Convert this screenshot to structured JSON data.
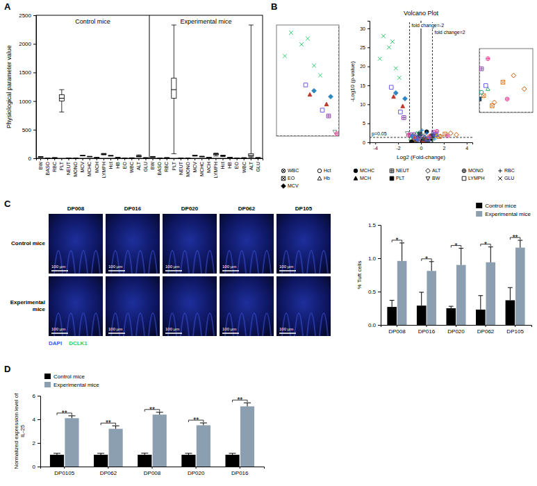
{
  "chart_data": [
    {
      "panel": "A",
      "type": "box",
      "ylabel": "Physiological parameter value",
      "ylim": [
        0,
        2500
      ],
      "yticks": [
        0,
        500,
        1000,
        1500,
        2000,
        2500
      ],
      "groups": [
        {
          "name": "Control mice",
          "categories": [
            "BW",
            "BASO",
            "RBC",
            "PLT",
            "NEUT",
            "MONO",
            "MCV",
            "MCHC",
            "MCH",
            "LYMPH",
            "Hct",
            "HB",
            "EO",
            "WBC",
            "ALT",
            "GLU"
          ],
          "min": [
            18,
            0,
            7,
            810,
            0.5,
            0.1,
            42,
            28,
            13,
            60,
            38,
            12,
            0,
            3,
            25,
            5
          ],
          "q1": [
            22,
            0,
            8.5,
            1000,
            1,
            0.2,
            45,
            30,
            14,
            68,
            42,
            13,
            0.1,
            5,
            32,
            7
          ],
          "median": [
            24,
            0.1,
            9,
            1050,
            1.5,
            0.3,
            47,
            31,
            15,
            72,
            45,
            14,
            0.2,
            6,
            38,
            8
          ],
          "q3": [
            26,
            0.1,
            9.5,
            1110,
            2,
            0.4,
            49,
            32,
            16,
            78,
            47,
            15,
            0.3,
            7,
            45,
            9
          ],
          "max": [
            30,
            0.3,
            10.5,
            1200,
            3,
            0.6,
            52,
            34,
            17,
            85,
            50,
            16,
            0.5,
            9,
            60,
            11
          ]
        },
        {
          "name": "Experimental mice",
          "categories": [
            "BW",
            "BASO",
            "RBC",
            "PLT",
            "NEUT",
            "MONO",
            "MCV",
            "MCHC",
            "MCH",
            "LYMPH",
            "Hct",
            "HB",
            "EO",
            "WBC",
            "ALT",
            "GLU"
          ],
          "min": [
            15,
            0,
            5,
            80,
            0.3,
            0.05,
            38,
            26,
            12,
            40,
            30,
            9,
            0,
            2,
            15,
            3
          ],
          "q1": [
            21,
            0,
            8,
            1050,
            1,
            0.2,
            44,
            29,
            14,
            62,
            40,
            12.5,
            0.1,
            4.5,
            35,
            6.5
          ],
          "median": [
            24,
            0.1,
            9,
            1200,
            1.8,
            0.3,
            47,
            31,
            15,
            70,
            44,
            14,
            0.2,
            6,
            50,
            8
          ],
          "q3": [
            27,
            0.2,
            9.8,
            1400,
            2.6,
            0.5,
            50,
            33,
            16,
            78,
            48,
            15,
            0.4,
            7.5,
            80,
            9.5
          ],
          "max": [
            32,
            0.5,
            11,
            2330,
            5,
            1,
            55,
            36,
            18,
            92,
            55,
            17,
            0.8,
            12,
            2330,
            14
          ]
        }
      ]
    },
    {
      "panel": "B",
      "type": "scatter",
      "title": "Volcano Plot",
      "xlabel": "Log2 (Fold-change)",
      "ylabel": "-Log10 (p-value)",
      "xlim": [
        -4.5,
        4.5
      ],
      "xticks": [
        -4,
        -2,
        0,
        2,
        4
      ],
      "ylim": [
        0,
        32
      ],
      "yticks": [
        0,
        5,
        10,
        15,
        20,
        25,
        30
      ],
      "center_x": 0,
      "thresholds": [
        {
          "axis": "x",
          "value": -1,
          "label": "fold change=-2"
        },
        {
          "axis": "x",
          "value": 1,
          "label": "fold change=2"
        },
        {
          "axis": "y",
          "value": 1.3,
          "label": "p=0.05"
        }
      ],
      "insets": [
        {
          "xlim": [
            -4,
            -1
          ],
          "ylim": [
            1.3,
            30
          ]
        },
        {
          "xlim": [
            1,
            3.5
          ],
          "ylim": [
            1.3,
            3.2
          ]
        }
      ],
      "legend": "bottom",
      "series": [
        {
          "name": "WBC",
          "color": "#7b3fa0",
          "marker": "circle-x",
          "x": [
            -0.3,
            0.2,
            0.5,
            -0.6,
            0.1
          ],
          "values": [
            0.8,
            1.5,
            0.4,
            2.1,
            0.2
          ]
        },
        {
          "name": "EO",
          "color": "#e67e22",
          "marker": "square-x",
          "x": [
            1.2,
            -0.5,
            2.1,
            0.8,
            1.6
          ],
          "values": [
            1.8,
            0.6,
            2.2,
            1.1,
            1.5
          ]
        },
        {
          "name": "MCV",
          "color": "#2e86c1",
          "marker": "diamond",
          "x": [
            -1.4,
            -0.2,
            0.3,
            -2.2,
            0.6
          ],
          "values": [
            11.5,
            0.9,
            1.2,
            13,
            0.5
          ]
        },
        {
          "name": "Hct",
          "color": "#16a085",
          "marker": "circle-open",
          "x": [
            -0.7,
            0.4,
            -0.1,
            0.9,
            1.1
          ],
          "values": [
            1.6,
            0.7,
            2.5,
            0.3,
            1.9
          ]
        },
        {
          "name": "Hb",
          "color": "#27ae60",
          "marker": "triangle-open",
          "x": [
            -0.4,
            0.7,
            0.2,
            -0.9,
            1.4
          ],
          "values": [
            2.3,
            1.3,
            0.6,
            1.0,
            2.0
          ]
        },
        {
          "name": "MCHC",
          "color": "#111111",
          "marker": "circle",
          "x": [
            0.1,
            -0.3,
            0.5,
            -0.8,
            0.9
          ],
          "values": [
            0.4,
            1.1,
            2.8,
            0.2,
            0.9
          ]
        },
        {
          "name": "MCH",
          "color": "#c0392b",
          "marker": "triangle",
          "x": [
            -1.6,
            -0.6,
            0.2,
            -2.4,
            0.8
          ],
          "values": [
            9.5,
            1.4,
            0.5,
            12,
            1.7
          ]
        },
        {
          "name": "NEUT",
          "color": "#8e44ad",
          "marker": "square-plus",
          "x": [
            -1.5,
            -0.2,
            1.1,
            0.4,
            -0.9
          ],
          "values": [
            6.5,
            1.0,
            2.6,
            0.8,
            2.0
          ]
        },
        {
          "name": "PLT",
          "color": "#34495e",
          "marker": "square",
          "x": [
            0.3,
            -0.4,
            1.0,
            -0.1,
            0.6
          ],
          "values": [
            0.9,
            0.4,
            1.7,
            2.2,
            0.3
          ]
        },
        {
          "name": "ALT",
          "color": "#d35400",
          "marker": "diamond-open",
          "x": [
            2.6,
            3.1,
            1.7,
            -0.5,
            0.4
          ],
          "values": [
            2.4,
            2.0,
            1.6,
            0.7,
            1.2
          ]
        },
        {
          "name": "BW",
          "color": "#7f8c8d",
          "marker": "triangle-down-open",
          "x": [
            -0.2,
            0.3,
            -0.6,
            0.9,
            -1.2
          ],
          "values": [
            0.5,
            1.8,
            1.2,
            0.6,
            2.4
          ]
        },
        {
          "name": "MONO",
          "color": "#e84393",
          "marker": "circle-plus",
          "x": [
            1.4,
            -0.3,
            0.7,
            -1.1,
            2.3
          ],
          "values": [
            2.9,
            0.8,
            1.5,
            1.9,
            1.7
          ]
        },
        {
          "name": "LYMPH",
          "color": "#6c5ce7",
          "marker": "square-open",
          "x": [
            -1.8,
            -0.5,
            0.6,
            1.3,
            -2.6
          ],
          "values": [
            8.0,
            1.3,
            0.9,
            2.1,
            14.5
          ]
        },
        {
          "name": "RBC",
          "color": "#0984e3",
          "marker": "plus",
          "x": [
            -0.8,
            0.5,
            -0.3,
            1.2,
            0.1
          ],
          "values": [
            1.7,
            2.5,
            0.6,
            0.9,
            3.2
          ]
        },
        {
          "name": "GLU",
          "color": "#2ecc71",
          "marker": "x",
          "x": [
            -3.3,
            -2.8,
            -2.2,
            -3.6,
            -1.9,
            -2.5
          ],
          "values": [
            28,
            25,
            19.5,
            22,
            17,
            26.5
          ]
        }
      ]
    },
    {
      "panel": "C",
      "type": "bar",
      "ylabel": "% Tuft cells",
      "categories": [
        "DP008",
        "DP016",
        "DP020",
        "DP062",
        "DP105"
      ],
      "ylim": [
        0,
        1.5
      ],
      "yticks": [
        {
          "value": 0,
          "label": "0.0"
        },
        0.5,
        {
          "value": 1,
          "label": "1.0"
        },
        1.5
      ],
      "legend": "top-right",
      "series": [
        {
          "name": "Control mice",
          "color": "#000000",
          "values": [
            0.27,
            0.29,
            0.25,
            0.23,
            0.37
          ],
          "errors": [
            0.1,
            0.2,
            0.03,
            0.21,
            0.19
          ]
        },
        {
          "name": "Experimental mice",
          "color": "#8c9fb1",
          "values": [
            0.96,
            0.81,
            0.9,
            0.94,
            1.16
          ],
          "errors": [
            0.27,
            0.14,
            0.25,
            0.23,
            0.11
          ]
        }
      ],
      "significance": [
        "*",
        "*",
        "*",
        "*",
        "**"
      ],
      "image_grid": {
        "columns": [
          "DP008",
          "DP016",
          "DP020",
          "DP062",
          "DP105"
        ],
        "rows": [
          "Control mice",
          "Experimental mice"
        ],
        "scale_bar": "100 μm",
        "stains": [
          {
            "name": "DAPI",
            "color": "#3355ff"
          },
          {
            "name": "DCLK1",
            "color": "#2fd04a"
          }
        ]
      }
    },
    {
      "panel": "D",
      "type": "bar",
      "ylabel": "Normalized expression level of IL-25",
      "categories": [
        "DP0105",
        "DP062",
        "DP008",
        "DP020",
        "DP016"
      ],
      "ylim": [
        0,
        6
      ],
      "yticks": [
        0,
        2,
        4,
        6
      ],
      "legend": "top-left",
      "series": [
        {
          "name": "Control mice",
          "color": "#000000",
          "values": [
            1,
            1,
            1,
            1,
            1
          ],
          "errors": [
            0.12,
            0.12,
            0.13,
            0.12,
            0.12
          ]
        },
        {
          "name": "Experimental mice",
          "color": "#8c9fb1",
          "values": [
            4.1,
            3.2,
            4.4,
            3.5,
            5.1
          ],
          "errors": [
            0.2,
            0.25,
            0.2,
            0.2,
            0.3
          ]
        }
      ],
      "significance": [
        "**",
        "**",
        "**",
        "**",
        "**"
      ]
    }
  ]
}
